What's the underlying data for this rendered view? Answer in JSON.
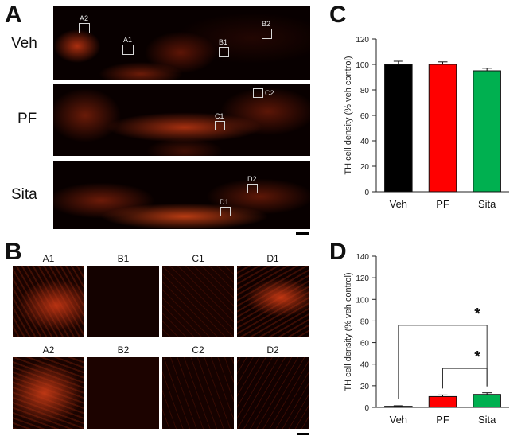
{
  "panel_a": {
    "letter": "A",
    "rows": [
      {
        "label": "Veh",
        "rois": [
          "A2",
          "A1",
          "B1",
          "B2"
        ]
      },
      {
        "label": "PF",
        "rois": [
          "C1",
          "C2"
        ]
      },
      {
        "label": "Sita",
        "rois": [
          "D1",
          "D2"
        ]
      }
    ]
  },
  "panel_b": {
    "letter": "B",
    "tiles_top": [
      "A1",
      "B1",
      "C1",
      "D1"
    ],
    "tiles_bottom": [
      "A2",
      "B2",
      "C2",
      "D2"
    ]
  },
  "panel_c": {
    "letter": "C"
  },
  "panel_d": {
    "letter": "D",
    "sig_mark": "*"
  },
  "colors": {
    "veh": "#000000",
    "pf": "#ff0000",
    "sita": "#00b050",
    "stain": "#c8340e"
  },
  "chart_data": [
    {
      "type": "bar",
      "categories": [
        "Veh",
        "PF",
        "Sita"
      ],
      "values": [
        100,
        100,
        95
      ],
      "errors": [
        2.5,
        2,
        2
      ],
      "colors": [
        "#000000",
        "#ff0000",
        "#00b050"
      ],
      "ylabel": "TH cell density (% veh control)",
      "xlabel": "",
      "ylim": [
        0,
        120
      ],
      "yticks": [
        0,
        20,
        40,
        60,
        80,
        100,
        120
      ]
    },
    {
      "type": "bar",
      "categories": [
        "Veh",
        "PF",
        "Sita"
      ],
      "values": [
        1,
        10,
        12
      ],
      "errors": [
        0.5,
        1.5,
        1.5
      ],
      "colors": [
        "#000000",
        "#ff0000",
        "#00b050"
      ],
      "ylabel": "TH cell density (% veh control)",
      "xlabel": "",
      "ylim": [
        0,
        140
      ],
      "yticks": [
        0,
        20,
        40,
        60,
        80,
        100,
        120,
        140
      ],
      "significance": [
        {
          "from": "Veh",
          "to": "Sita",
          "label": "*"
        },
        {
          "from": "PF",
          "to": "Sita",
          "label": "*"
        }
      ]
    }
  ]
}
